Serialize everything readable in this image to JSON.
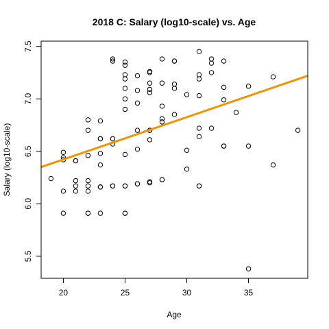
{
  "chart_data": {
    "type": "scatter",
    "title": "2018 C: Salary (log10-scale) vs. Age",
    "xlabel": "Age",
    "ylabel": "Salary (log10-scale)",
    "xlim": [
      18.2,
      39.8
    ],
    "ylim": [
      5.29,
      7.55
    ],
    "x_ticks": [
      "20",
      "25",
      "30",
      "35"
    ],
    "y_ticks": [
      "5.5",
      "6.0",
      "6.5",
      "7.0",
      "7.5"
    ],
    "grid": false,
    "legend": "none",
    "point_color": "#000000",
    "fit_line": {
      "x": [
        18.2,
        39.8
      ],
      "y": [
        6.35,
        7.22
      ],
      "color": "#f39200"
    },
    "series": [
      {
        "x": [
          19,
          20,
          20,
          20,
          20,
          20,
          21,
          21,
          21,
          21,
          21,
          22,
          22,
          22,
          22,
          22,
          22,
          22,
          22,
          23,
          23,
          23,
          23,
          23,
          23,
          23,
          23,
          23,
          24,
          24,
          24,
          24,
          24,
          24,
          25,
          25,
          25,
          25,
          25,
          25,
          25,
          25,
          25,
          25,
          25,
          25,
          26,
          26,
          26,
          26,
          26,
          26,
          26,
          27,
          27,
          27,
          27,
          27,
          27,
          27,
          27,
          27,
          27,
          28,
          28,
          28,
          28,
          28,
          28,
          28,
          29,
          29,
          29,
          29,
          29,
          30,
          30,
          30,
          31,
          31,
          31,
          31,
          31,
          31,
          31,
          31,
          32,
          32,
          32,
          32,
          33,
          33,
          33,
          33,
          33,
          34,
          35,
          35,
          35,
          37,
          37,
          39
        ],
        "y": [
          6.24,
          6.49,
          6.44,
          6.42,
          6.12,
          5.91,
          6.41,
          6.41,
          6.22,
          6.17,
          6.12,
          6.8,
          6.7,
          6.46,
          6.22,
          6.17,
          6.12,
          5.91,
          5.91,
          6.79,
          6.62,
          6.62,
          6.48,
          6.37,
          6.16,
          6.16,
          6.16,
          5.91,
          7.38,
          7.36,
          6.62,
          6.57,
          6.17,
          6.17,
          7.35,
          7.32,
          7.23,
          7.19,
          7.1,
          7.0,
          6.9,
          6.47,
          6.17,
          6.17,
          5.91,
          5.91,
          7.22,
          7.08,
          6.96,
          6.7,
          6.52,
          6.19,
          6.19,
          7.26,
          7.25,
          7.15,
          7.09,
          7.06,
          6.7,
          6.7,
          6.61,
          6.21,
          6.2,
          7.38,
          7.15,
          6.93,
          6.81,
          6.78,
          6.23,
          6.23,
          7.36,
          7.36,
          7.14,
          7.1,
          6.85,
          7.04,
          6.51,
          6.33,
          7.45,
          7.23,
          7.19,
          7.03,
          6.72,
          6.64,
          6.17,
          6.17,
          7.38,
          7.34,
          7.25,
          6.72,
          7.36,
          7.11,
          6.99,
          6.55,
          6.55,
          6.87,
          7.12,
          6.55,
          5.38,
          7.21,
          6.37,
          6.7
        ]
      }
    ]
  }
}
